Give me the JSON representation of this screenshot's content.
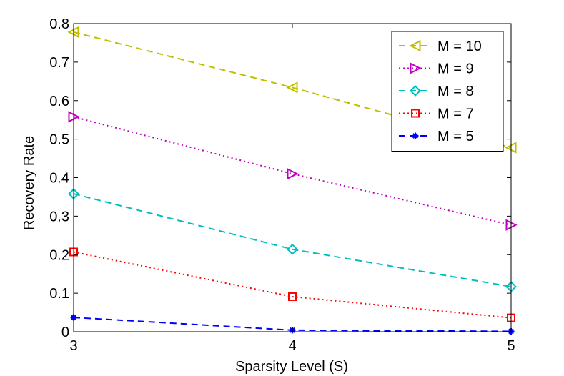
{
  "chart_data": {
    "type": "line",
    "title": "",
    "xlabel": "Sparsity Level (S)",
    "ylabel": "Recovery Rate",
    "x": [
      3,
      4,
      5
    ],
    "xlim": [
      3,
      5
    ],
    "ylim": [
      0,
      0.8
    ],
    "xticks": [
      "3",
      "4",
      "5"
    ],
    "yticks": [
      "0",
      "0.1",
      "0.2",
      "0.3",
      "0.4",
      "0.5",
      "0.6",
      "0.7",
      "0.8"
    ],
    "grid": false,
    "legend_position": "top-right",
    "series": [
      {
        "name": "M = 10",
        "values": [
          0.778,
          0.634,
          0.478
        ],
        "color": "#BFBF00",
        "dash": "dashed",
        "marker": "triangle-left"
      },
      {
        "name": "M = 9",
        "values": [
          0.558,
          0.41,
          0.277
        ],
        "color": "#BF00BF",
        "dash": "dotted",
        "marker": "triangle-right"
      },
      {
        "name": "M = 8",
        "values": [
          0.358,
          0.214,
          0.117
        ],
        "color": "#00BFBF",
        "dash": "dashed",
        "marker": "diamond"
      },
      {
        "name": "M = 7",
        "values": [
          0.207,
          0.091,
          0.036
        ],
        "color": "#FF0000",
        "dash": "dotted",
        "marker": "square"
      },
      {
        "name": "M = 5",
        "values": [
          0.037,
          0.004,
          0.001
        ],
        "color": "#0000FF",
        "dash": "dashed",
        "marker": "asterisk"
      }
    ]
  }
}
